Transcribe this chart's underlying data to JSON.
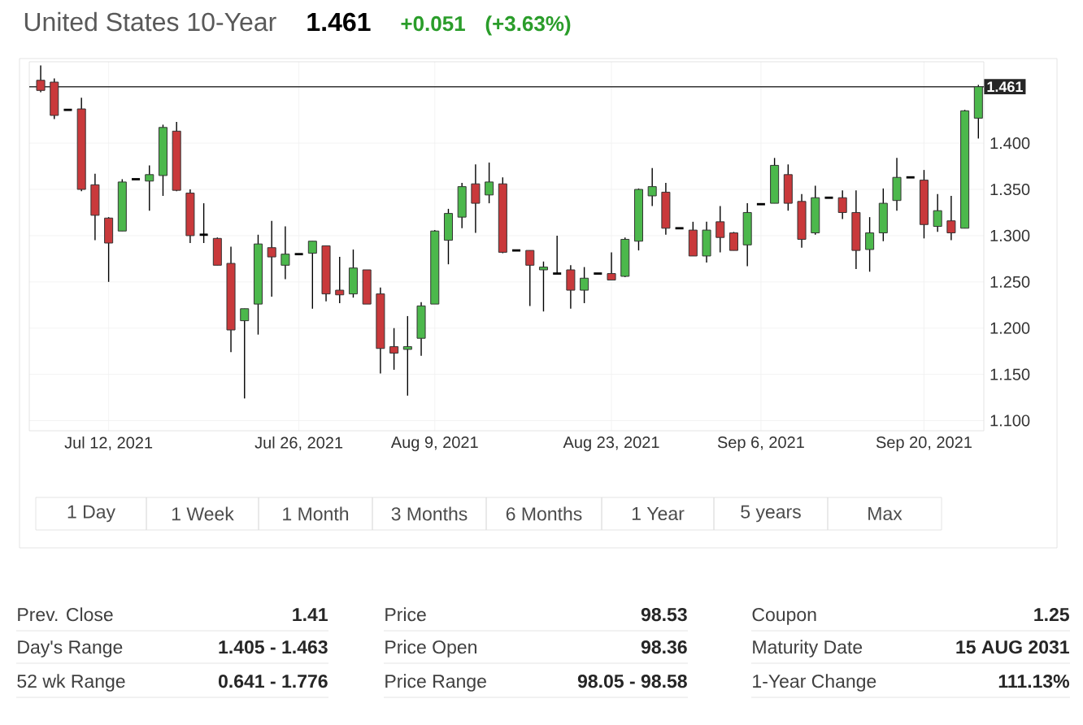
{
  "chart_data": {
    "type": "candlestick",
    "title": "United States 10-Year",
    "categories": [
      null,
      null,
      null,
      null,
      null,
      "Jul 12, 2021",
      null,
      null,
      null,
      null,
      null,
      null,
      null,
      null,
      null,
      null,
      null,
      null,
      null,
      "Jul 26, 2021",
      null,
      null,
      null,
      null,
      null,
      null,
      null,
      null,
      null,
      "Aug 9, 2021",
      null,
      null,
      null,
      null,
      null,
      null,
      null,
      null,
      null,
      null,
      null,
      null,
      "Aug 23, 2021",
      null,
      null,
      null,
      null,
      null,
      null,
      null,
      null,
      null,
      null,
      "Sep 6, 2021",
      null,
      null,
      null,
      null,
      null,
      null,
      null,
      null,
      null,
      null,
      null,
      "Sep 20, 2021",
      null,
      null,
      null,
      null
    ],
    "ohlc": [
      [
        1.468,
        1.484,
        1.455,
        1.457
      ],
      [
        1.466,
        1.47,
        1.426,
        1.43
      ],
      [
        1.436,
        1.436,
        1.436,
        1.436
      ],
      [
        1.437,
        1.449,
        1.348,
        1.35
      ],
      [
        1.355,
        1.367,
        1.295,
        1.322
      ],
      [
        1.319,
        1.32,
        1.25,
        1.292
      ],
      [
        1.305,
        1.361,
        1.305,
        1.358
      ],
      [
        1.361,
        1.361,
        1.361,
        1.361
      ],
      [
        1.359,
        1.376,
        1.327,
        1.366
      ],
      [
        1.365,
        1.42,
        1.343,
        1.417
      ],
      [
        1.413,
        1.423,
        1.348,
        1.349
      ],
      [
        1.346,
        1.35,
        1.292,
        1.3
      ],
      [
        1.301,
        1.335,
        1.292,
        1.301
      ],
      [
        1.297,
        1.298,
        1.268,
        1.268
      ],
      [
        1.27,
        1.288,
        1.174,
        1.198
      ],
      [
        1.208,
        1.221,
        1.124,
        1.221
      ],
      [
        1.226,
        1.301,
        1.193,
        1.291
      ],
      [
        1.287,
        1.316,
        1.234,
        1.277
      ],
      [
        1.268,
        1.31,
        1.253,
        1.28
      ],
      [
        1.28,
        1.28,
        1.28,
        1.28
      ],
      [
        1.281,
        1.294,
        1.221,
        1.294
      ],
      [
        1.289,
        1.289,
        1.229,
        1.237
      ],
      [
        1.241,
        1.277,
        1.227,
        1.236
      ],
      [
        1.237,
        1.285,
        1.233,
        1.265
      ],
      [
        1.263,
        1.263,
        1.226,
        1.226
      ],
      [
        1.237,
        1.244,
        1.151,
        1.178
      ],
      [
        1.18,
        1.2,
        1.155,
        1.173
      ],
      [
        1.177,
        1.213,
        1.127,
        1.18
      ],
      [
        1.189,
        1.228,
        1.17,
        1.224
      ],
      [
        1.226,
        1.306,
        1.226,
        1.305
      ],
      [
        1.295,
        1.329,
        1.269,
        1.324
      ],
      [
        1.32,
        1.357,
        1.308,
        1.353
      ],
      [
        1.356,
        1.377,
        1.303,
        1.335
      ],
      [
        1.344,
        1.379,
        1.335,
        1.358
      ],
      [
        1.356,
        1.363,
        1.281,
        1.282
      ],
      [
        1.284,
        1.284,
        1.284,
        1.284
      ],
      [
        1.284,
        1.284,
        1.224,
        1.268
      ],
      [
        1.263,
        1.272,
        1.218,
        1.266
      ],
      [
        1.259,
        1.3,
        1.259,
        1.259
      ],
      [
        1.263,
        1.268,
        1.221,
        1.241
      ],
      [
        1.241,
        1.266,
        1.227,
        1.254
      ],
      [
        1.259,
        1.259,
        1.259,
        1.259
      ],
      [
        1.259,
        1.282,
        1.252,
        1.252
      ],
      [
        1.256,
        1.298,
        1.255,
        1.296
      ],
      [
        1.294,
        1.351,
        1.284,
        1.35
      ],
      [
        1.343,
        1.373,
        1.332,
        1.353
      ],
      [
        1.347,
        1.357,
        1.301,
        1.308
      ],
      [
        1.308,
        1.308,
        1.308,
        1.308
      ],
      [
        1.306,
        1.315,
        1.278,
        1.278
      ],
      [
        1.278,
        1.315,
        1.271,
        1.306
      ],
      [
        1.315,
        1.332,
        1.282,
        1.298
      ],
      [
        1.303,
        1.304,
        1.284,
        1.284
      ],
      [
        1.29,
        1.335,
        1.267,
        1.325
      ],
      [
        1.334,
        1.334,
        1.334,
        1.334
      ],
      [
        1.335,
        1.384,
        1.335,
        1.376
      ],
      [
        1.366,
        1.377,
        1.327,
        1.335
      ],
      [
        1.337,
        1.345,
        1.287,
        1.296
      ],
      [
        1.303,
        1.354,
        1.301,
        1.341
      ],
      [
        1.341,
        1.341,
        1.341,
        1.341
      ],
      [
        1.341,
        1.349,
        1.318,
        1.325
      ],
      [
        1.325,
        1.349,
        1.264,
        1.284
      ],
      [
        1.285,
        1.32,
        1.261,
        1.303
      ],
      [
        1.303,
        1.351,
        1.294,
        1.335
      ],
      [
        1.338,
        1.384,
        1.327,
        1.363
      ],
      [
        1.363,
        1.363,
        1.363,
        1.363
      ],
      [
        1.36,
        1.371,
        1.297,
        1.312
      ],
      [
        1.31,
        1.345,
        1.304,
        1.327
      ],
      [
        1.316,
        1.343,
        1.295,
        1.303
      ],
      [
        1.308,
        1.436,
        1.308,
        1.435
      ],
      [
        1.427,
        1.463,
        1.405,
        1.461
      ]
    ],
    "ylim": [
      1.089,
      1.488
    ],
    "yticks": [
      {
        "value": 1.1,
        "label": "1.100"
      },
      {
        "value": 1.15,
        "label": "1.150"
      },
      {
        "value": 1.2,
        "label": "1.200"
      },
      {
        "value": 1.25,
        "label": "1.250"
      },
      {
        "value": 1.3,
        "label": "1.300"
      },
      {
        "value": 1.35,
        "label": "1.350"
      },
      {
        "value": 1.4,
        "label": "1.400"
      }
    ],
    "grid": true,
    "ref_lines": [
      {
        "axis": "y",
        "value": 1.461,
        "label": "1.461"
      }
    ],
    "annotations": [
      "1.461",
      "+0.051",
      "(+3.63%)",
      "1 Day",
      "1 Week",
      "1 Month",
      "3 Months",
      "6 Months",
      "1 Year",
      "5 years",
      "Max",
      "Prev. Close",
      "1.41",
      "Day's Range",
      "1.405 - 1.463",
      "52 wk Range",
      "0.641 - 1.776",
      "Price",
      "98.53",
      "Price Open",
      "98.36",
      "Price Range",
      "98.05 - 98.58",
      "Coupon",
      "1.25",
      "Maturity Date",
      "15 AUG 2031",
      "1-Year Change",
      "111.13%"
    ]
  }
}
